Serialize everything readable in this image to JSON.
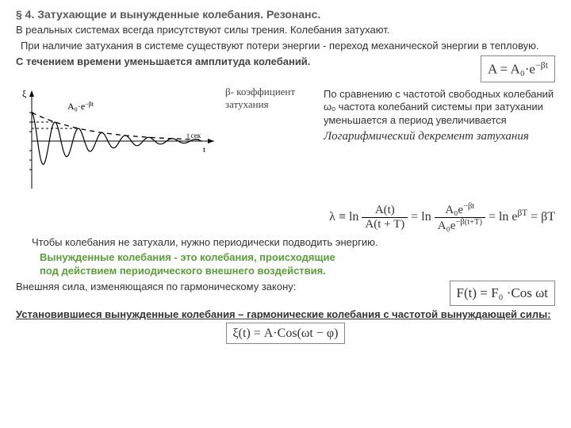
{
  "title": "§ 4. Затухающие и вынужденные колебания. Резонанс.",
  "p1": "В реальных системах всегда присутствуют силы трения. Колебания затухают.",
  "p2": "При наличие затухания в системе существуют потери энергии - переход механической  энергии в тепловую.",
  "p3": "С течением времени уменьшается амплитуда колебаний.",
  "formula_amp": "A = A₀·e",
  "formula_amp_sup": "−βt",
  "beta_label": "β- коэффициент затухания",
  "chart_annot": "A₀·e",
  "chart_annot_sup": "−βt",
  "chart_xend": "t сек",
  "chart_xaxis": "t",
  "chart_yaxis": "ξ",
  "p4": "По сравнению с частотой свободных колебаний ωₒ частота колебаний системы при затухании уменьшается а период увеличивается",
  "logdec": "Логарифмический декремент затухания",
  "lambda_lead": "λ ≡ ln",
  "lambda_num1": "A(t)",
  "lambda_den1": "A(t + T)",
  "lambda_mid": " = ln",
  "lambda_num2": "A₀e",
  "lambda_num2_sup": "−βt",
  "lambda_den2": "A₀e",
  "lambda_den2_sup": "−β(t+T)",
  "lambda_tail": " = ln e",
  "lambda_tail_sup": "βT",
  "lambda_end": " = βT",
  "p5": "Чтобы колебания не затухали, нужно периодически подводить энергию.",
  "p6a": "Вынужденные колебания - это колебания, происходящие",
  "p6b": "под действием периодического внешнего воздействия.",
  "p7": "Внешняя сила, изменяющаяся по гармоническому закону:",
  "formula_force": "F(t) = F₀ ·Cos ωt",
  "p8": "Установившиеся вынужденные колебания – гармонические колебания с частотой вынуждающей силы:",
  "formula_xi": "ξ(t) = A·Cos(ωt − φ)",
  "chart": {
    "beta": 0.55,
    "omega": 8.5,
    "A0": 36,
    "xmax": 230,
    "dash": "6,5"
  }
}
